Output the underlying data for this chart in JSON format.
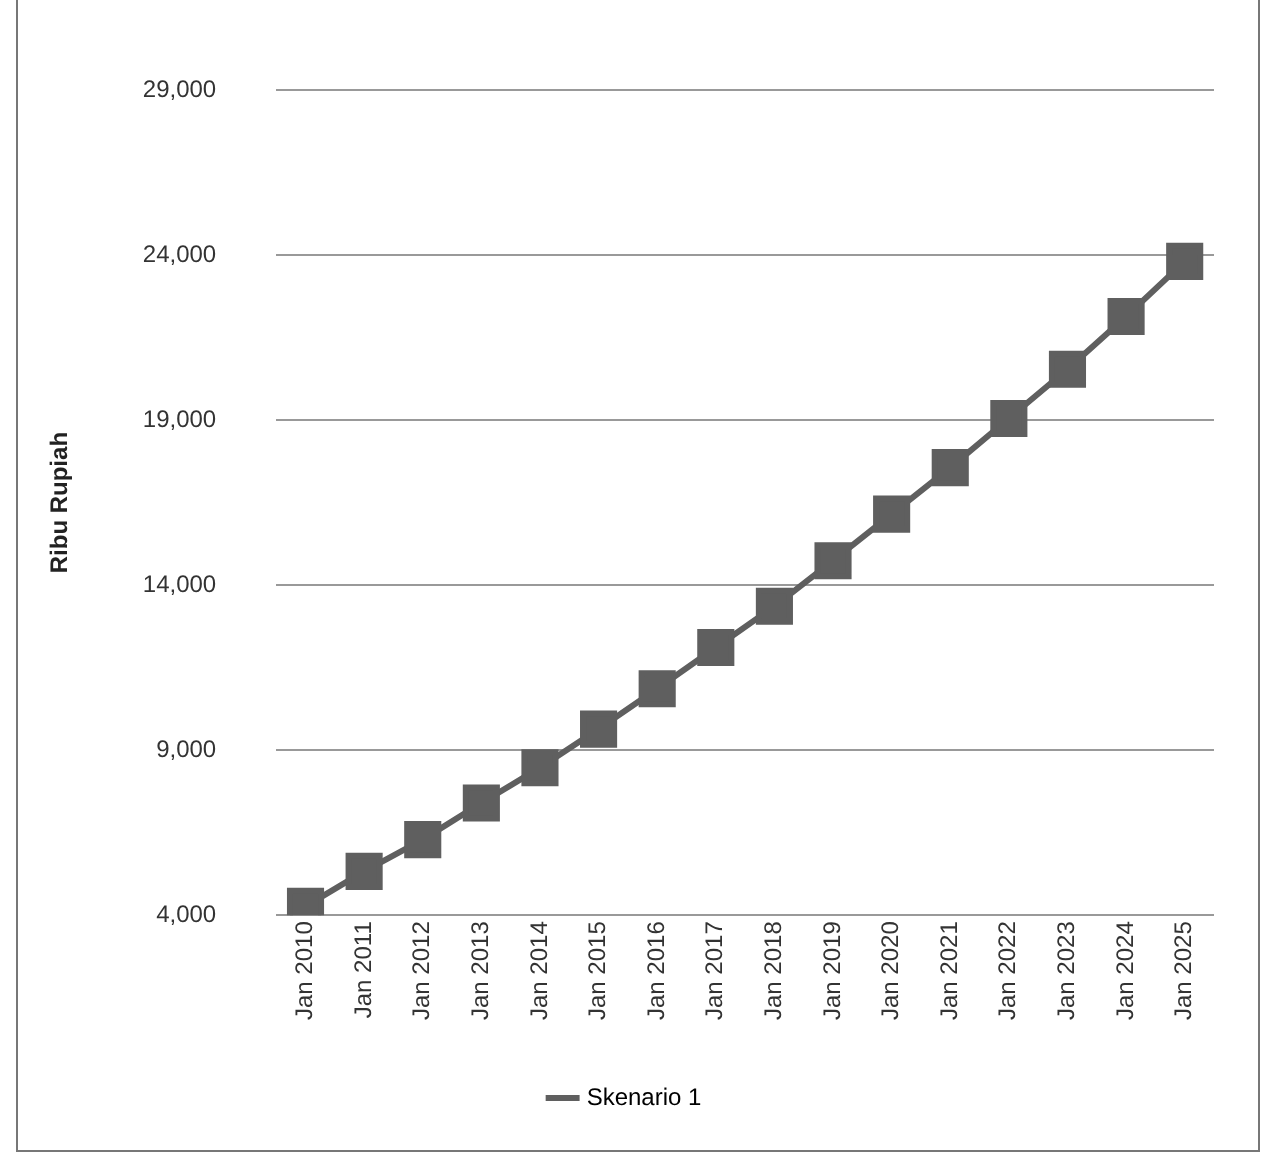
{
  "chart_data": {
    "type": "line",
    "ylabel": "Ribu Rupiah",
    "categories": [
      "Jan 2010",
      "Jan 2011",
      "Jan 2012",
      "Jan 2013",
      "Jan 2014",
      "Jan 2015",
      "Jan 2016",
      "Jan 2017",
      "Jan 2018",
      "Jan 2019",
      "Jan 2020",
      "Jan 2021",
      "Jan 2022",
      "Jan 2023",
      "Jan 2024",
      "Jan 2025"
    ],
    "series": [
      {
        "name": "Skenario 1",
        "color": "#5f5f5f",
        "values": [
          4270,
          5330,
          6290,
          7400,
          8470,
          9640,
          10860,
          12110,
          13360,
          14740,
          16150,
          17560,
          19050,
          20540,
          22140,
          23810
        ]
      }
    ],
    "ylim": [
      4000,
      29000
    ],
    "yticks": [
      {
        "value": 4000,
        "label": "4,000"
      },
      {
        "value": 9000,
        "label": "9,000"
      },
      {
        "value": 14000,
        "label": "14,000"
      },
      {
        "value": 19000,
        "label": "19,000"
      },
      {
        "value": 24000,
        "label": "24,000"
      },
      {
        "value": 29000,
        "label": "29,000"
      }
    ],
    "grid": "y",
    "legend": "bottom",
    "marker": "square",
    "line_style": "solid"
  }
}
